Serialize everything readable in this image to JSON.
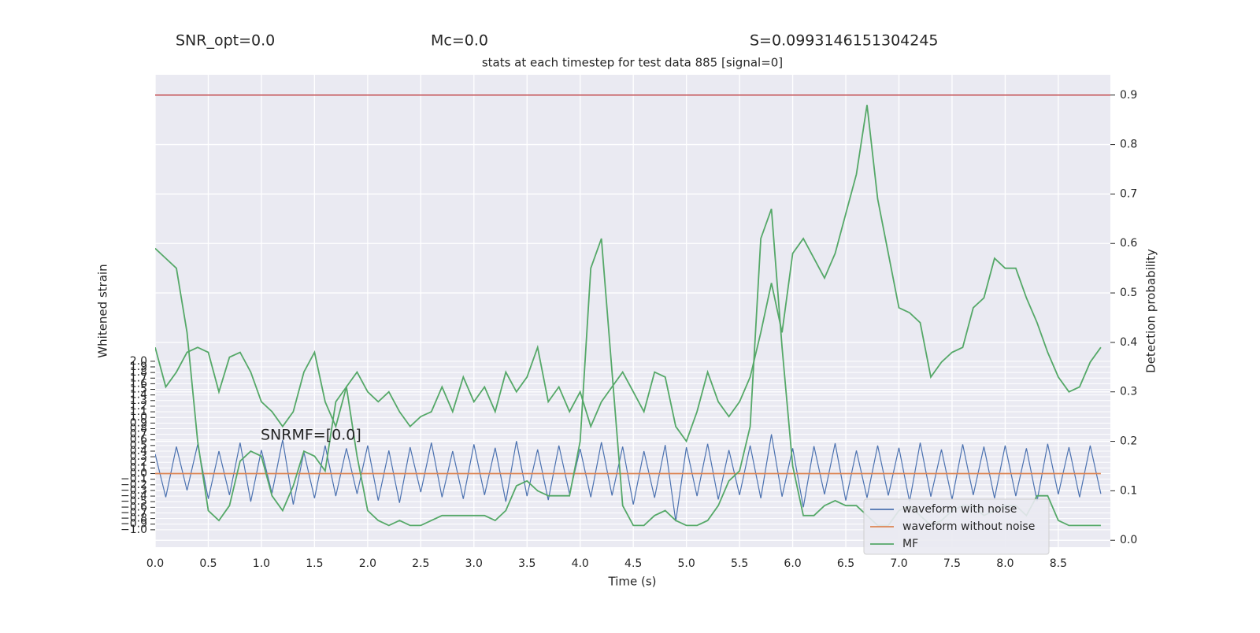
{
  "chart_data": {
    "type": "line",
    "title": "stats at each timestep for test data 885 [signal=0]",
    "annotations": [
      "SNR_opt=0.0",
      "Mc=0.0",
      "S=0.0993146151304245",
      "SNRMF=[0.0]"
    ],
    "xlabel": "Time (s)",
    "ylabel": "Whitened strain",
    "y2label": "Detection probability",
    "xlim": [
      0,
      8.99
    ],
    "ylim": [
      -1.31,
      7.1
    ],
    "y2lim": [
      -0.014,
      0.941
    ],
    "xticks": [
      {
        "value": 0,
        "label": "0.0"
      },
      0.5,
      {
        "value": 1,
        "label": "1.0"
      },
      1.5,
      {
        "value": 2,
        "label": "2.0"
      },
      2.5,
      {
        "value": 3,
        "label": "3.0"
      },
      3.5,
      {
        "value": 4,
        "label": "4.0"
      },
      4.5,
      {
        "value": 5,
        "label": "5.0"
      },
      5.5,
      {
        "value": 6,
        "label": "6.0"
      },
      6.5,
      {
        "value": 7,
        "label": "7.0"
      },
      7.5,
      {
        "value": 8,
        "label": "8.0"
      },
      8.5
    ],
    "yticks": [
      {
        "value": -1,
        "label": "−1.0"
      },
      {
        "value": -0.9,
        "label": "−0.9"
      },
      {
        "value": -0.8,
        "label": "−0.8"
      },
      {
        "value": -0.7,
        "label": "−0.7"
      },
      {
        "value": -0.6,
        "label": "−0.6"
      },
      {
        "value": -0.5,
        "label": "−0.5"
      },
      {
        "value": -0.4,
        "label": "−0.4"
      },
      {
        "value": -0.3,
        "label": "−0.3"
      },
      {
        "value": -0.2,
        "label": "−0.2"
      },
      {
        "value": -0.1,
        "label": "−0.1"
      },
      {
        "value": 0,
        "label": "0.0"
      },
      0.1,
      0.2,
      0.3,
      0.4,
      0.5,
      0.6,
      0.7,
      0.8,
      0.9,
      {
        "value": 1,
        "label": "1.0"
      },
      1.1,
      1.2,
      1.3,
      1.4,
      1.5,
      1.6,
      1.7,
      1.8,
      1.9,
      {
        "value": 2,
        "label": "2.0"
      }
    ],
    "y2ticks": [
      {
        "value": 0,
        "label": "0.0"
      },
      0.1,
      0.2,
      0.3,
      0.4,
      0.5,
      0.6,
      0.7,
      0.8,
      0.9
    ],
    "grid": true,
    "legend": "lower right",
    "hlines": [
      {
        "y": 0.9,
        "color": "#c44e52",
        "axis": "y2"
      }
    ],
    "x": [
      0,
      0.1,
      0.2,
      0.3,
      0.4,
      0.5,
      0.6,
      0.7,
      0.8,
      0.9,
      1,
      1.1,
      1.2,
      1.3,
      1.4,
      1.5,
      1.6,
      1.7,
      1.8,
      1.9,
      2,
      2.1,
      2.2,
      2.3,
      2.4,
      2.5,
      2.6,
      2.7,
      2.8,
      2.9,
      3,
      3.1,
      3.2,
      3.3,
      3.4,
      3.5,
      3.6,
      3.7,
      3.8,
      3.9,
      4,
      4.1,
      4.2,
      4.3,
      4.4,
      4.5,
      4.6,
      4.7,
      4.8,
      4.9,
      5,
      5.1,
      5.2,
      5.3,
      5.4,
      5.5,
      5.6,
      5.7,
      5.8,
      5.9,
      6,
      6.1,
      6.2,
      6.3,
      6.4,
      6.5,
      6.6,
      6.7,
      6.8,
      6.9,
      7,
      7.1,
      7.2,
      7.3,
      7.4,
      7.5,
      7.6,
      7.7,
      7.8,
      7.9,
      8,
      8.1,
      8.2,
      8.3,
      8.4,
      8.5,
      8.6,
      8.7,
      8.8,
      8.9
    ],
    "series": [
      {
        "name": "waveform with noise",
        "color": "#4c72b0",
        "axis": "y",
        "values": [
          0.35,
          -0.42,
          0.48,
          -0.3,
          0.52,
          -0.45,
          0.4,
          -0.38,
          0.55,
          -0.5,
          0.42,
          -0.35,
          0.6,
          -0.55,
          0.38,
          -0.44,
          0.5,
          -0.4,
          0.45,
          -0.36,
          0.5,
          -0.48,
          0.41,
          -0.52,
          0.47,
          -0.33,
          0.55,
          -0.42,
          0.4,
          -0.45,
          0.52,
          -0.38,
          0.46,
          -0.5,
          0.58,
          -0.4,
          0.43,
          -0.47,
          0.5,
          -0.36,
          0.44,
          -0.42,
          0.56,
          -0.39,
          0.48,
          -0.55,
          0.4,
          -0.43,
          0.51,
          -0.85,
          0.47,
          -0.4,
          0.53,
          -0.46,
          0.42,
          -0.38,
          0.5,
          -0.44,
          0.7,
          -0.41,
          0.45,
          -0.6,
          0.49,
          -0.37,
          0.54,
          -0.48,
          0.41,
          -0.43,
          0.5,
          -0.39,
          0.46,
          -0.5,
          0.55,
          -0.41,
          0.43,
          -0.46,
          0.52,
          -0.38,
          0.48,
          -0.44,
          0.5,
          -0.4,
          0.45,
          -0.49,
          0.53,
          -0.37,
          0.47,
          -0.42,
          0.5,
          -0.36
        ]
      },
      {
        "name": "waveform without noise",
        "color": "#dd8452",
        "axis": "y",
        "values": [
          0,
          0,
          0,
          0,
          0,
          0,
          0,
          0,
          0,
          0,
          0,
          0,
          0,
          0,
          0,
          0,
          0,
          0,
          0,
          0,
          0,
          0,
          0,
          0,
          0,
          0,
          0,
          0,
          0,
          0,
          0,
          0,
          0,
          0,
          0,
          0,
          0,
          0,
          0,
          0,
          0,
          0,
          0,
          0,
          0,
          0,
          0,
          0,
          0,
          0,
          0,
          0,
          0,
          0,
          0,
          0,
          0,
          0,
          0,
          0,
          0,
          0,
          0,
          0,
          0,
          0,
          0,
          0,
          0,
          0,
          0,
          0,
          0,
          0,
          0,
          0,
          0,
          0,
          0,
          0,
          0,
          0,
          0,
          0,
          0,
          0,
          0,
          0,
          0,
          0
        ]
      },
      {
        "name": "MF",
        "color": "#55a868",
        "axis": "y2",
        "values": [
          0.59,
          0.57,
          0.55,
          0.42,
          0.2,
          0.06,
          0.04,
          0.07,
          0.16,
          0.18,
          0.17,
          0.09,
          0.06,
          0.11,
          0.18,
          0.17,
          0.14,
          0.28,
          0.31,
          0.17,
          0.06,
          0.04,
          0.03,
          0.04,
          0.03,
          0.03,
          0.04,
          0.05,
          0.05,
          0.05,
          0.05,
          0.05,
          0.04,
          0.06,
          0.11,
          0.12,
          0.1,
          0.09,
          0.09,
          0.09,
          0.2,
          0.55,
          0.61,
          0.34,
          0.07,
          0.03,
          0.03,
          0.05,
          0.06,
          0.04,
          0.03,
          0.03,
          0.04,
          0.07,
          0.12,
          0.14,
          0.23,
          0.61,
          0.67,
          0.39,
          0.15,
          0.05,
          0.05,
          0.07,
          0.08,
          0.07,
          0.07,
          0.05,
          0.03,
          0.03,
          0.06,
          0.07,
          0.05,
          0.03,
          0.04,
          0.06,
          0.07,
          0.07,
          0.05,
          0.06,
          0.07,
          0.07,
          0.05,
          0.09,
          0.09,
          0.04,
          0.03,
          0.03,
          0.03,
          0.03
        ]
      },
      {
        "color": "#55a868",
        "axis": "y2",
        "values": [
          0.39,
          0.31,
          0.34,
          0.38,
          0.39,
          0.38,
          0.3,
          0.37,
          0.38,
          0.34,
          0.28,
          0.26,
          0.23,
          0.26,
          0.34,
          0.38,
          0.28,
          0.23,
          0.31,
          0.34,
          0.3,
          0.28,
          0.3,
          0.26,
          0.23,
          0.25,
          0.26,
          0.31,
          0.26,
          0.33,
          0.28,
          0.31,
          0.26,
          0.34,
          0.3,
          0.33,
          0.39,
          0.28,
          0.31,
          0.26,
          0.3,
          0.23,
          0.28,
          0.31,
          0.34,
          0.3,
          0.26,
          0.34,
          0.33,
          0.23,
          0.2,
          0.26,
          0.34,
          0.28,
          0.25,
          0.28,
          0.33,
          0.42,
          0.52,
          0.42,
          0.58,
          0.61,
          0.57,
          0.53,
          0.58,
          0.66,
          0.74,
          0.88,
          0.69,
          0.58,
          0.47,
          0.46,
          0.44,
          0.33,
          0.36,
          0.38,
          0.39,
          0.47,
          0.49,
          0.57,
          0.55,
          0.55,
          0.49,
          0.44,
          0.38,
          0.33,
          0.3,
          0.31,
          0.36,
          0.39
        ]
      }
    ]
  }
}
